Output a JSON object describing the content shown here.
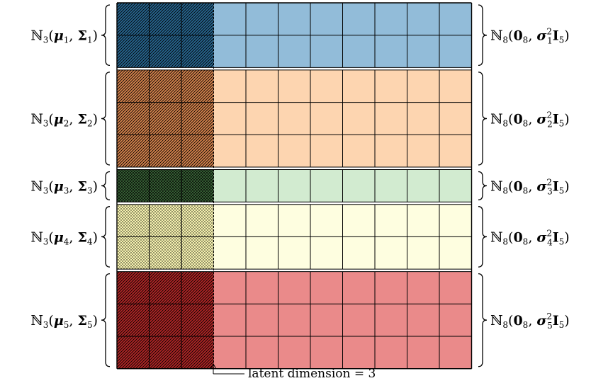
{
  "diagram": {
    "latent_dim": 3,
    "total_cols": 11,
    "annotation": "latent dimension = 3",
    "clusters": [
      {
        "index": "1",
        "rows": 2,
        "fill": "#92bcd9",
        "dark": "#27658f",
        "pattern": "hatch"
      },
      {
        "index": "2",
        "rows": 3,
        "fill": "#fdd5b0",
        "dark": "#d6834c",
        "pattern": "hatch"
      },
      {
        "index": "3",
        "rows": 1,
        "fill": "#d2ebd0",
        "dark": "#3c6a3a",
        "pattern": "cross"
      },
      {
        "index": "4",
        "rows": 2,
        "fill": "#fefee0",
        "dark": "#f7f3b0",
        "pattern": "dots"
      },
      {
        "index": "5",
        "rows": 3,
        "fill": "#ea8a8a",
        "dark": "#b02525",
        "pattern": "hatch"
      }
    ],
    "left_label": {
      "blackboard": "ℕ",
      "dim": "3",
      "mu": "μ",
      "sigma": "Σ"
    },
    "right_label": {
      "blackboard": "ℕ",
      "dim": "8",
      "zero": "0",
      "zero_sub": "8",
      "sigma": "σ",
      "sq": "2",
      "identity": "I",
      "id_sub": "5"
    }
  }
}
